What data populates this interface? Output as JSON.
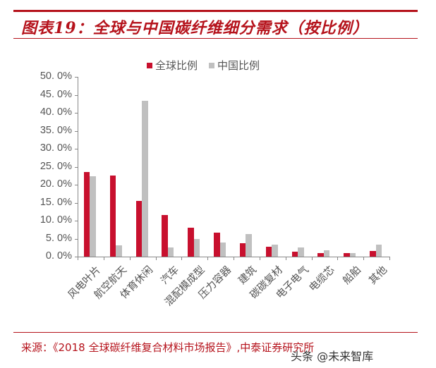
{
  "header": {
    "title": "图表19：全球与中国碳纤维细分需求（按比例）"
  },
  "footer": {
    "source": "来源：《2018 全球碳纤维复合材料市场报告》,中泰证券研究所",
    "watermark": "头条 @未来智库"
  },
  "colors": {
    "accent": "#b5121b",
    "global_series": "#c8102e",
    "china_series": "#c0c0c0",
    "axis": "#888888"
  },
  "legend": {
    "global": "全球比例",
    "china": "中国比例"
  },
  "yaxis": {
    "ticks": [
      "50. 0%",
      "45. 0%",
      "40. 0%",
      "35. 0%",
      "30. 0%",
      "25. 0%",
      "20. 0%",
      "15. 0%",
      "10. 0%",
      "5. 0%",
      "0. 0%"
    ]
  },
  "chart_data": {
    "type": "bar",
    "title": "图表19：全球与中国碳纤维细分需求（按比例）",
    "xlabel": "",
    "ylabel": "",
    "ylim": [
      0,
      50
    ],
    "y_tick_format": "percent, 1 decimal",
    "grid": false,
    "legend_position": "top",
    "categories": [
      "风电叶片",
      "航空航天",
      "体育休闲",
      "汽车",
      "混配模成型",
      "压力容器",
      "建筑",
      "碳碳复材",
      "电子电气",
      "电缆芯",
      "船舶",
      "其他"
    ],
    "series": [
      {
        "name": "全球比例",
        "color": "#c8102e",
        "values": [
          23.6,
          22.5,
          15.4,
          11.6,
          8.1,
          6.6,
          3.7,
          2.7,
          1.3,
          0.9,
          0.9,
          1.5
        ]
      },
      {
        "name": "中国比例",
        "color": "#c0c0c0",
        "values": [
          22.4,
          3.1,
          43.3,
          2.5,
          5.0,
          3.9,
          6.3,
          3.4,
          2.5,
          1.8,
          0.9,
          3.4
        ]
      }
    ]
  }
}
